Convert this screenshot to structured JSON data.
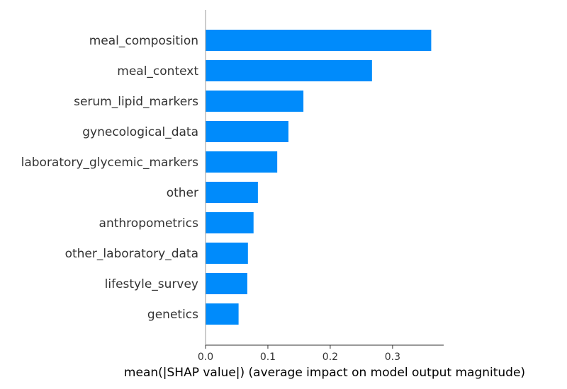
{
  "chart_data": {
    "type": "bar",
    "orientation": "horizontal",
    "categories": [
      "meal_composition",
      "meal_context",
      "serum_lipid_markers",
      "gynecological_data",
      "laboratory_glycemic_markers",
      "other",
      "anthropometrics",
      "other_laboratory_data",
      "lifestyle_survey",
      "genetics"
    ],
    "values": [
      0.362,
      0.267,
      0.157,
      0.133,
      0.115,
      0.084,
      0.077,
      0.068,
      0.067,
      0.053
    ],
    "xlabel": "mean(|SHAP value|) (average impact on model output magnitude)",
    "ylabel": "",
    "xlim": [
      0,
      0.382
    ],
    "xticks": [
      0.0,
      0.1,
      0.2,
      0.3
    ],
    "xtick_labels": [
      "0.0",
      "0.1",
      "0.2",
      "0.3"
    ],
    "grid": false,
    "bar_color": "#008bfb",
    "axis_color": "#999999"
  }
}
